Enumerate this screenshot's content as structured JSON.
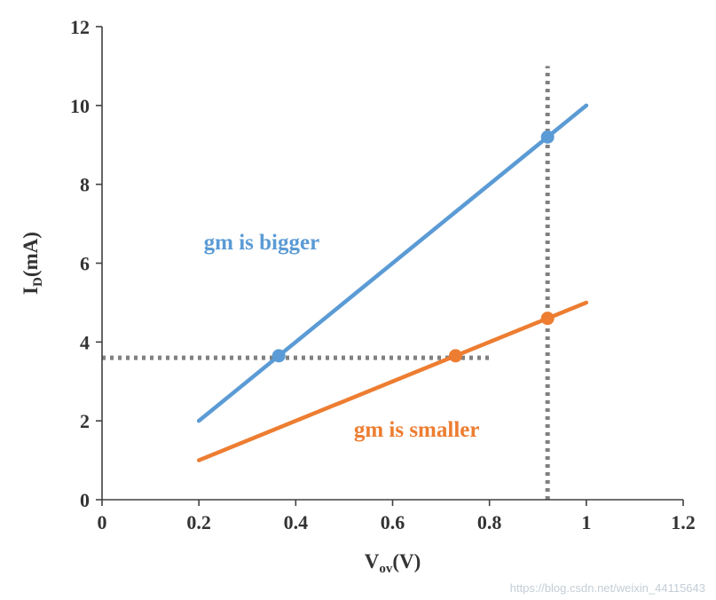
{
  "chart_data": {
    "type": "line",
    "title": "",
    "xlabel": "Vov(V)",
    "ylabel": "ID(mA)",
    "xlim": [
      0,
      1.2
    ],
    "ylim": [
      0,
      12
    ],
    "xticks": [
      0,
      0.2,
      0.4,
      0.6,
      0.8,
      1,
      1.2
    ],
    "xtick_labels": [
      "0",
      "0.2",
      "0.4",
      "0.6",
      "0.8",
      "1",
      "1.2"
    ],
    "yticks": [
      0,
      2,
      4,
      6,
      8,
      10,
      12
    ],
    "ytick_labels": [
      "0",
      "2",
      "4",
      "6",
      "8",
      "10",
      "12"
    ],
    "grid": false,
    "legend": "none",
    "axes": {
      "x": {
        "label_main": "V",
        "label_sub": "ov",
        "label_rest": "(V)"
      },
      "y": {
        "label_main": "I",
        "label_sub": "D",
        "label_rest": "(mA)"
      }
    },
    "series": [
      {
        "id": "gm-bigger",
        "name": "gm is bigger",
        "color": "#5B9BD5",
        "x": [
          0.2,
          1.0
        ],
        "y": [
          2,
          10
        ],
        "markers": [
          {
            "x": 0.365,
            "y": 3.65
          },
          {
            "x": 0.92,
            "y": 9.2
          }
        ],
        "label_pos": {
          "x": 0.21,
          "y": 6.35
        }
      },
      {
        "id": "gm-smaller",
        "name": "gm is smaller",
        "color": "#ED7D31",
        "x": [
          0.2,
          1.0
        ],
        "y": [
          1,
          5
        ],
        "markers": [
          {
            "x": 0.73,
            "y": 3.65
          },
          {
            "x": 0.92,
            "y": 4.6
          }
        ],
        "label_pos": {
          "x": 0.52,
          "y": 1.6
        }
      }
    ],
    "guides": [
      {
        "type": "h",
        "y": 3.6,
        "x0": 0,
        "x1": 0.8
      },
      {
        "type": "v",
        "x": 0.92,
        "y0": 0,
        "y1": 11
      }
    ],
    "colors": {
      "guide": "#808080",
      "axis": "#404040",
      "tick_text": "#333333"
    }
  },
  "watermark": "https://blog.csdn.net/weixin_44115643"
}
